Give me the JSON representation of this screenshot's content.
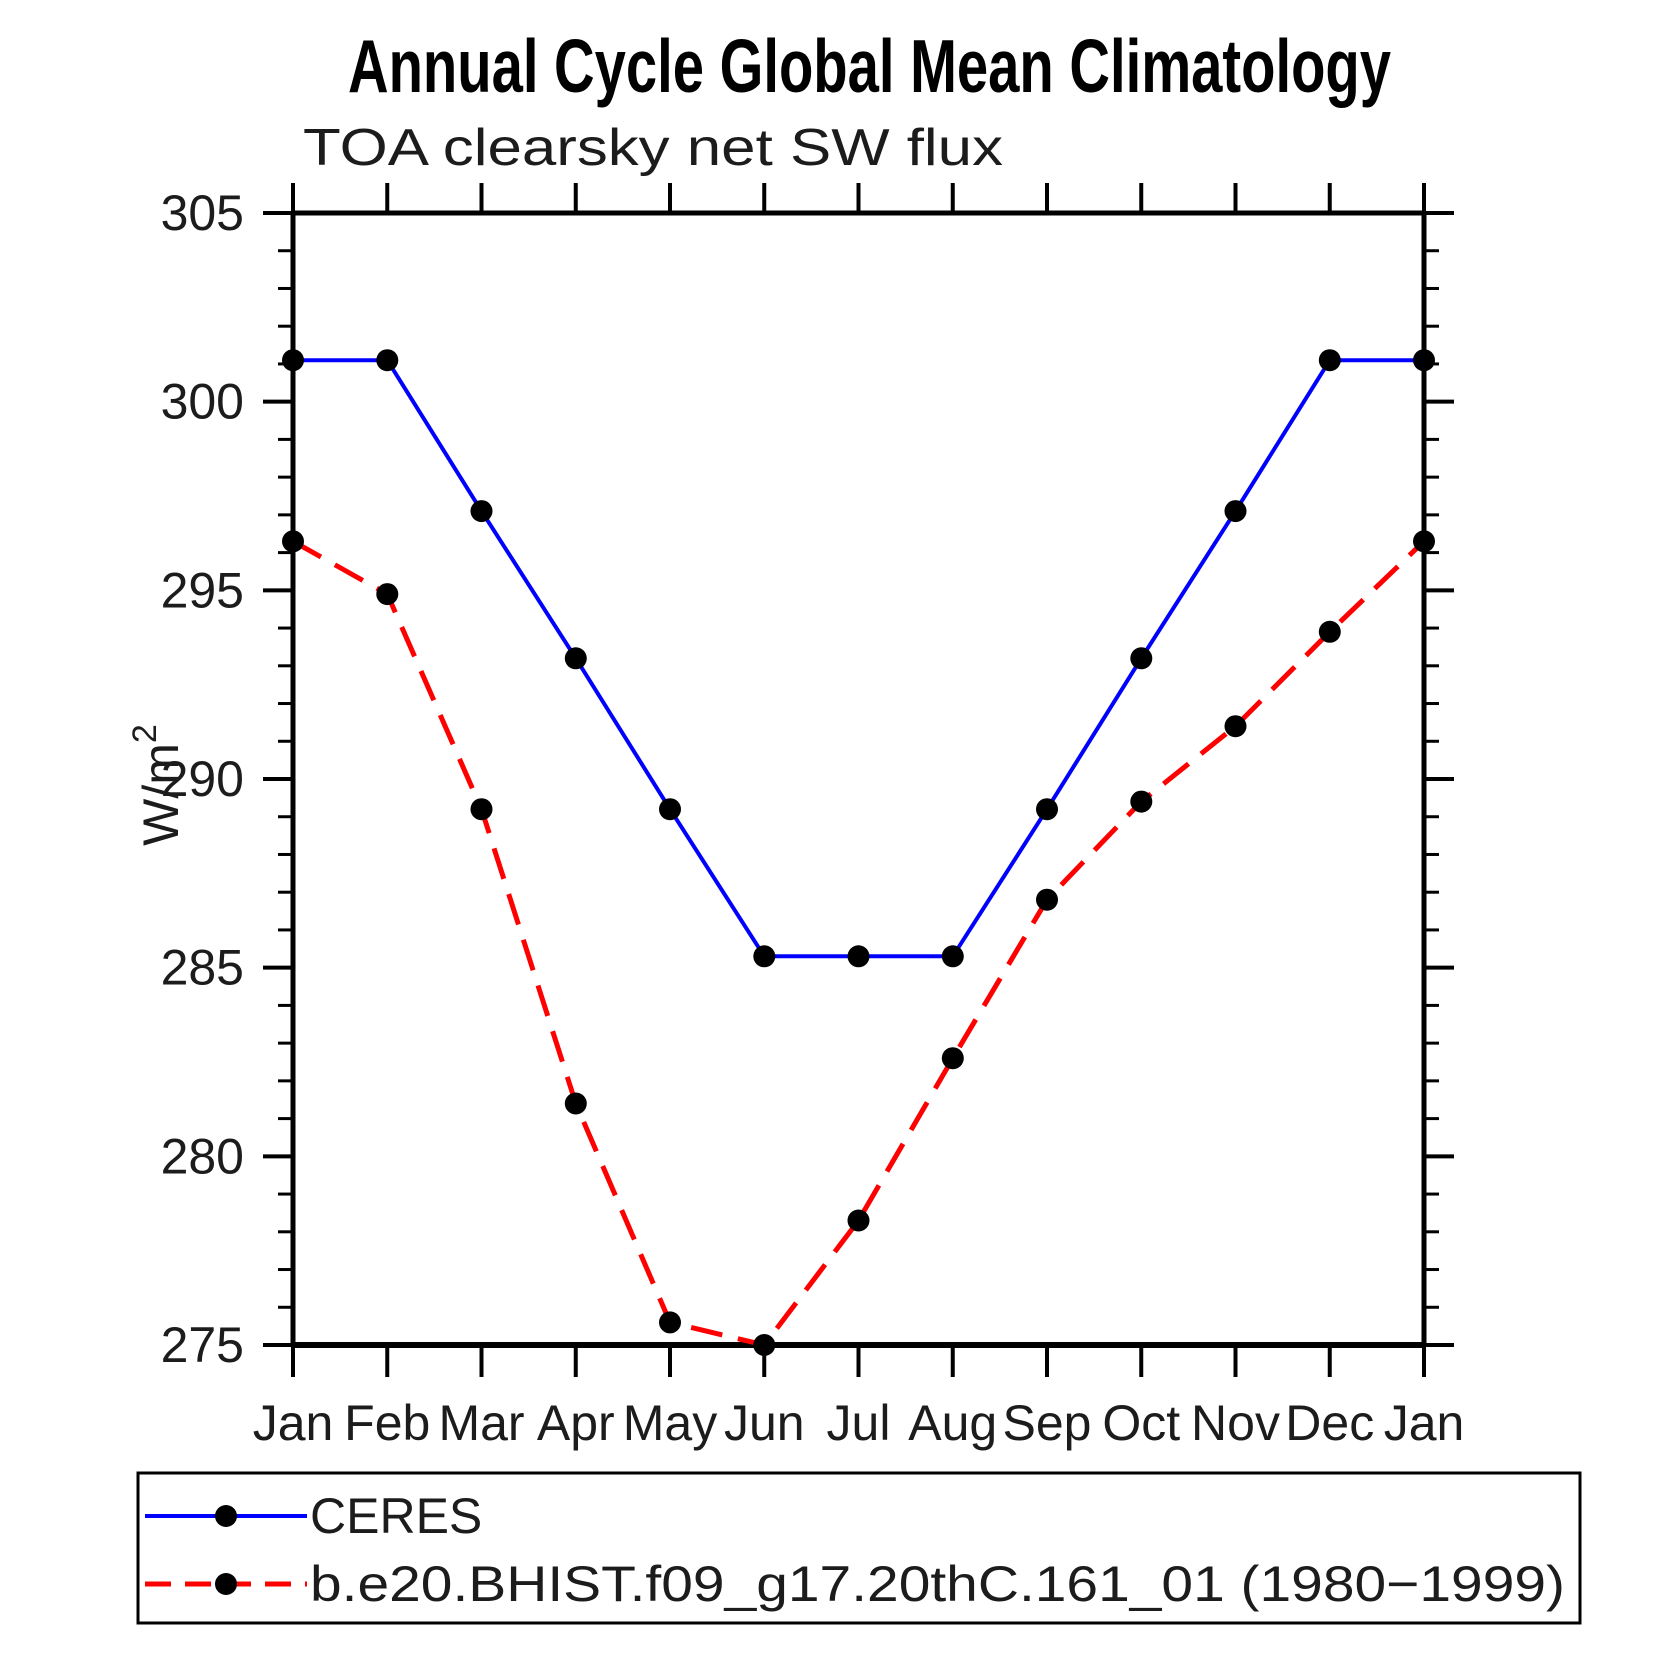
{
  "chart_data": {
    "type": "line",
    "title": "Annual Cycle Global Mean Climatology",
    "subtitle": "TOA clearsky net SW flux",
    "ylabel": "W/m²",
    "xlabel": "",
    "categories": [
      "Jan",
      "Feb",
      "Mar",
      "Apr",
      "May",
      "Jun",
      "Jul",
      "Aug",
      "Sep",
      "Oct",
      "Nov",
      "Dec",
      "Jan"
    ],
    "series": [
      {
        "name": "CERES",
        "color": "#0000ff",
        "line_style": "solid",
        "marker": "filled-circle",
        "marker_color": "#000000",
        "values": [
          301.1,
          301.1,
          297.1,
          293.2,
          289.2,
          285.3,
          285.3,
          285.3,
          289.2,
          293.2,
          297.1,
          301.1,
          301.1
        ]
      },
      {
        "name": "b.e20.BHIST.f09_g17.20thC.161_01 (1980−1999)",
        "color": "#ff0000",
        "line_style": "dashed",
        "marker": "filled-circle",
        "marker_color": "#000000",
        "values": [
          296.3,
          294.9,
          289.2,
          281.4,
          275.6,
          275.0,
          278.3,
          282.6,
          286.8,
          289.4,
          291.4,
          293.9,
          296.3
        ]
      }
    ],
    "ylim": [
      275,
      305
    ],
    "yticks": [
      275,
      280,
      285,
      290,
      295,
      300,
      305
    ],
    "ytick_minor_step": 1,
    "grid": false,
    "legend_position": "bottom-left-box"
  },
  "colors": {
    "background": "#ffffff",
    "axis": "#000000",
    "ceres_line": "#0000ff",
    "model_line": "#ff0000",
    "marker": "#000000"
  }
}
